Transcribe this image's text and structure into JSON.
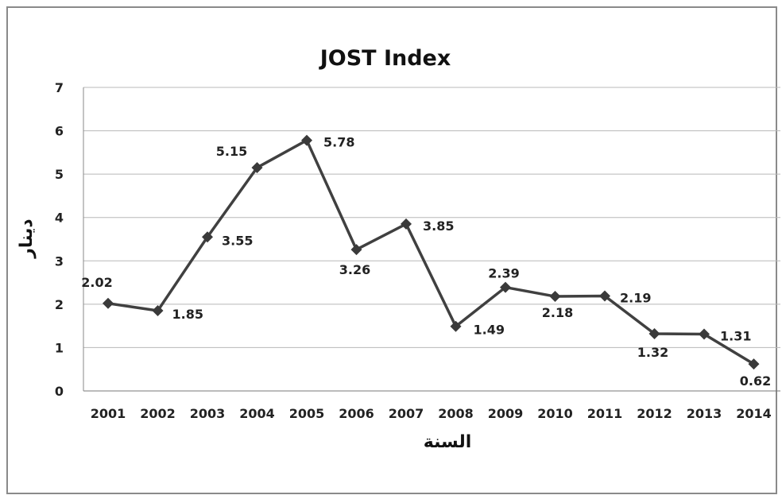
{
  "chart_data": {
    "type": "line",
    "title": "JOST Index",
    "xlabel": "السنة",
    "ylabel": "دينار",
    "categories": [
      "2001",
      "2002",
      "2003",
      "2004",
      "2005",
      "2006",
      "2007",
      "2008",
      "2009",
      "2010",
      "2011",
      "2012",
      "2013",
      "2014"
    ],
    "series": [
      {
        "values": [
          2.02,
          1.85,
          3.55,
          5.15,
          5.78,
          3.26,
          3.85,
          1.49,
          2.39,
          2.18,
          2.19,
          1.32,
          1.31,
          0.62
        ],
        "labels": [
          "2.02",
          "1.85",
          "3.55",
          "5.15",
          "5.78",
          "3.26",
          "3.85",
          "1.49",
          "2.39",
          "2.18",
          "2.19",
          "1.32",
          "1.31",
          "0.62"
        ]
      }
    ],
    "ylim": [
      0,
      7
    ],
    "yticks": [
      "0",
      "1",
      "2",
      "3",
      "4",
      "5",
      "6",
      "7"
    ],
    "grid": true,
    "legend": "none",
    "line_color": "#404040",
    "marker": "diamond"
  }
}
